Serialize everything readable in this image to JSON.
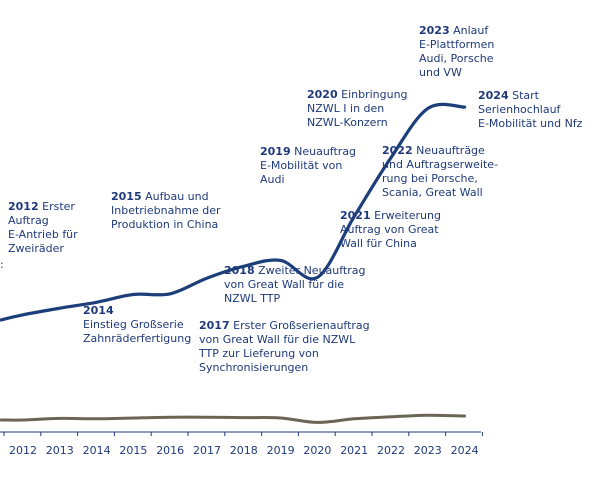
{
  "chart_data": {
    "type": "line",
    "x": [
      2011.4,
      2012,
      2013,
      2014,
      2015,
      2016,
      2017,
      2018,
      2019,
      2020,
      2021,
      2022,
      2023,
      2024
    ],
    "categories": [
      "2012",
      "2013",
      "2014",
      "2015",
      "2016",
      "2017",
      "2018",
      "2019",
      "2020",
      "2021",
      "2022",
      "2023",
      "2024"
    ],
    "series": [
      {
        "color": "#1c3f7a",
        "values": [
          20,
          28,
          38,
          47,
          59,
          60,
          84,
          102,
          111,
          85,
          178,
          268,
          343,
          345
        ]
      },
      {
        "color": "#6b6556",
        "values": [
          0,
          0,
          2,
          1.5,
          2.5,
          3.5,
          3.5,
          3,
          2.5,
          -3,
          1.5,
          4,
          6,
          5
        ]
      }
    ],
    "annotations": [
      {
        "year": "2012",
        "lines": [
          "Erster",
          "Auftrag",
          "E-Antrieb für",
          "Zweiräder"
        ]
      },
      {
        "year": "2014",
        "lines": [
          "",
          "Einstieg Großserie",
          "Zahnräderfertigung"
        ]
      },
      {
        "year": "2015",
        "lines": [
          "Aufbau und",
          "Inbetriebnahme der",
          "Produktion in China"
        ]
      },
      {
        "year": "2017",
        "lines": [
          "Erster Großserienauftrag",
          "von Great Wall für die NZWL",
          "TTP zur Lieferung von",
          "Synchronisierungen"
        ]
      },
      {
        "year": "2018",
        "lines": [
          "Zweiter Neuauftrag",
          "von Great Wall für die",
          "NZWL TTP"
        ]
      },
      {
        "year": "2019",
        "lines": [
          "Neuauftrag",
          "E-Mobilität von",
          "Audi"
        ]
      },
      {
        "year": "2020",
        "lines": [
          "Einbringung",
          "NZWL I in den",
          "NZWL-Konzern"
        ]
      },
      {
        "year": "2021",
        "lines": [
          "Erweiterung",
          "Auftrag von Great",
          "Wall für China"
        ]
      },
      {
        "year": "2022",
        "lines": [
          "Neuaufträge",
          "und Auftragserweite-",
          "rung bei Porsche,",
          "Scania, Great Wall"
        ]
      },
      {
        "year": "2023",
        "lines": [
          "Anlauf",
          "E-Plattformen",
          "Audi, Porsche",
          "und VW"
        ]
      },
      {
        "year": "2024",
        "lines": [
          "Start",
          "Serienhochlauf",
          "E-Mobilität und Nfz"
        ]
      }
    ],
    "fragment": ":",
    "colors": {
      "text": "#1f3a7a",
      "axis": "#1f3a7a"
    }
  }
}
